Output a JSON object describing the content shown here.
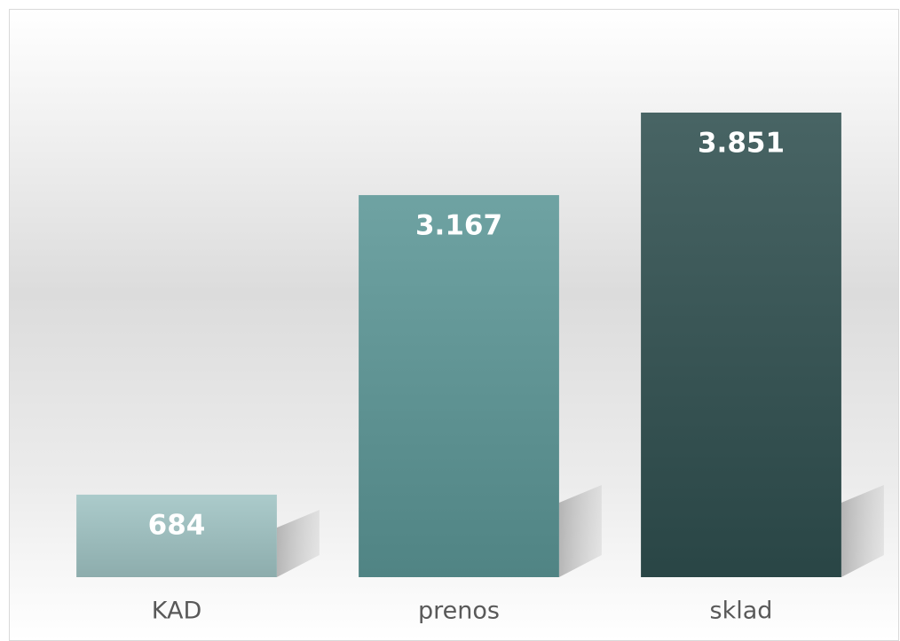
{
  "chart_data": {
    "type": "bar",
    "categories": [
      "KAD",
      "prenos",
      "sklad"
    ],
    "values": [
      684,
      3167,
      3851
    ],
    "value_labels": [
      "684",
      "3.167",
      "3.851"
    ],
    "colors": [
      "#a0c4c4",
      "#5b9696",
      "#2f4f4f"
    ],
    "grid": false
  }
}
